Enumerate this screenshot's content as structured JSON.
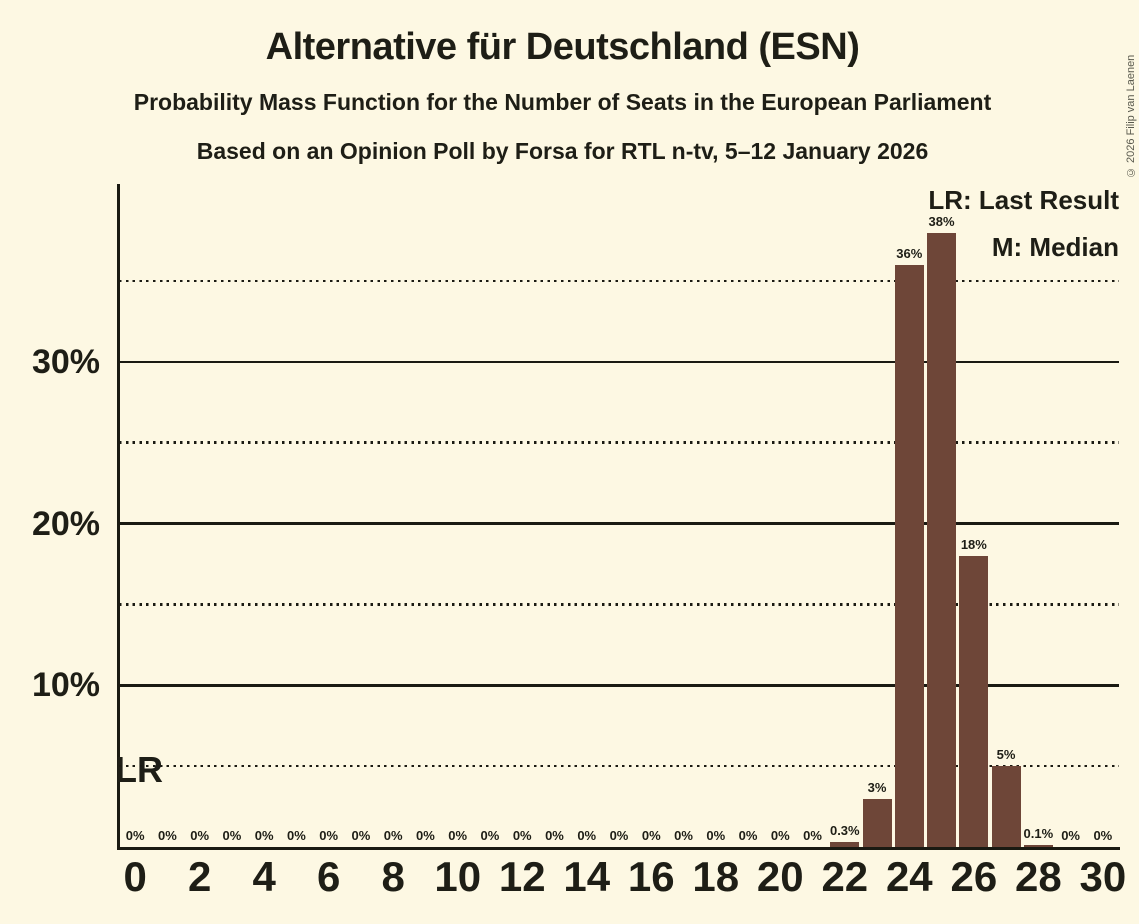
{
  "title": "Alternative für Deutschland (ESN)",
  "subtitle1": "Probability Mass Function for the Number of Seats in the European Parliament",
  "subtitle2": "Based on an Opinion Poll by Forsa for RTL n-tv, 5–12 January 2026",
  "copyright": "© 2026 Filip van Laenen",
  "legend": {
    "lr": "LR: Last Result",
    "m": "M: Median"
  },
  "colors": {
    "background": "#FDF8E3",
    "bar": "#6E4638",
    "text": "#1E1E16"
  },
  "chart_data": {
    "type": "bar",
    "title": "Alternative für Deutschland (ESN)",
    "xlabel": "",
    "ylabel": "",
    "x": [
      0,
      1,
      2,
      3,
      4,
      5,
      6,
      7,
      8,
      9,
      10,
      11,
      12,
      13,
      14,
      15,
      16,
      17,
      18,
      19,
      20,
      21,
      22,
      23,
      24,
      25,
      26,
      27,
      28,
      29,
      30
    ],
    "values": [
      0,
      0,
      0,
      0,
      0,
      0,
      0,
      0,
      0,
      0,
      0,
      0,
      0,
      0,
      0,
      0,
      0,
      0,
      0,
      0,
      0,
      0,
      0.3,
      3,
      36,
      38,
      18,
      5,
      0.1,
      0,
      0
    ],
    "labels": [
      "0%",
      "0%",
      "0%",
      "0%",
      "0%",
      "0%",
      "0%",
      "0%",
      "0%",
      "0%",
      "0%",
      "0%",
      "0%",
      "0%",
      "0%",
      "0%",
      "0%",
      "0%",
      "0%",
      "0%",
      "0%",
      "0%",
      "0.3%",
      "3%",
      "36%",
      "38%",
      "18%",
      "5%",
      "0.1%",
      "0%",
      "0%"
    ],
    "x_tick_labels": [
      "0",
      "2",
      "4",
      "6",
      "8",
      "10",
      "12",
      "14",
      "16",
      "18",
      "20",
      "22",
      "24",
      "26",
      "28",
      "30"
    ],
    "y_ticks": [
      {
        "value": 10,
        "label": "10%"
      },
      {
        "value": 20,
        "label": "20%"
      },
      {
        "value": 30,
        "label": "30%"
      }
    ],
    "ylim": [
      0,
      41
    ],
    "solid_gridlines": [
      10,
      20,
      30
    ],
    "dotted_gridlines": [
      5,
      15,
      25,
      35
    ],
    "legend_position": "top-right",
    "median": {
      "seat": 25,
      "label": "M",
      "label_bottom_pct": 18
    },
    "last_result": {
      "label": "LR",
      "at_pct": 5
    }
  }
}
